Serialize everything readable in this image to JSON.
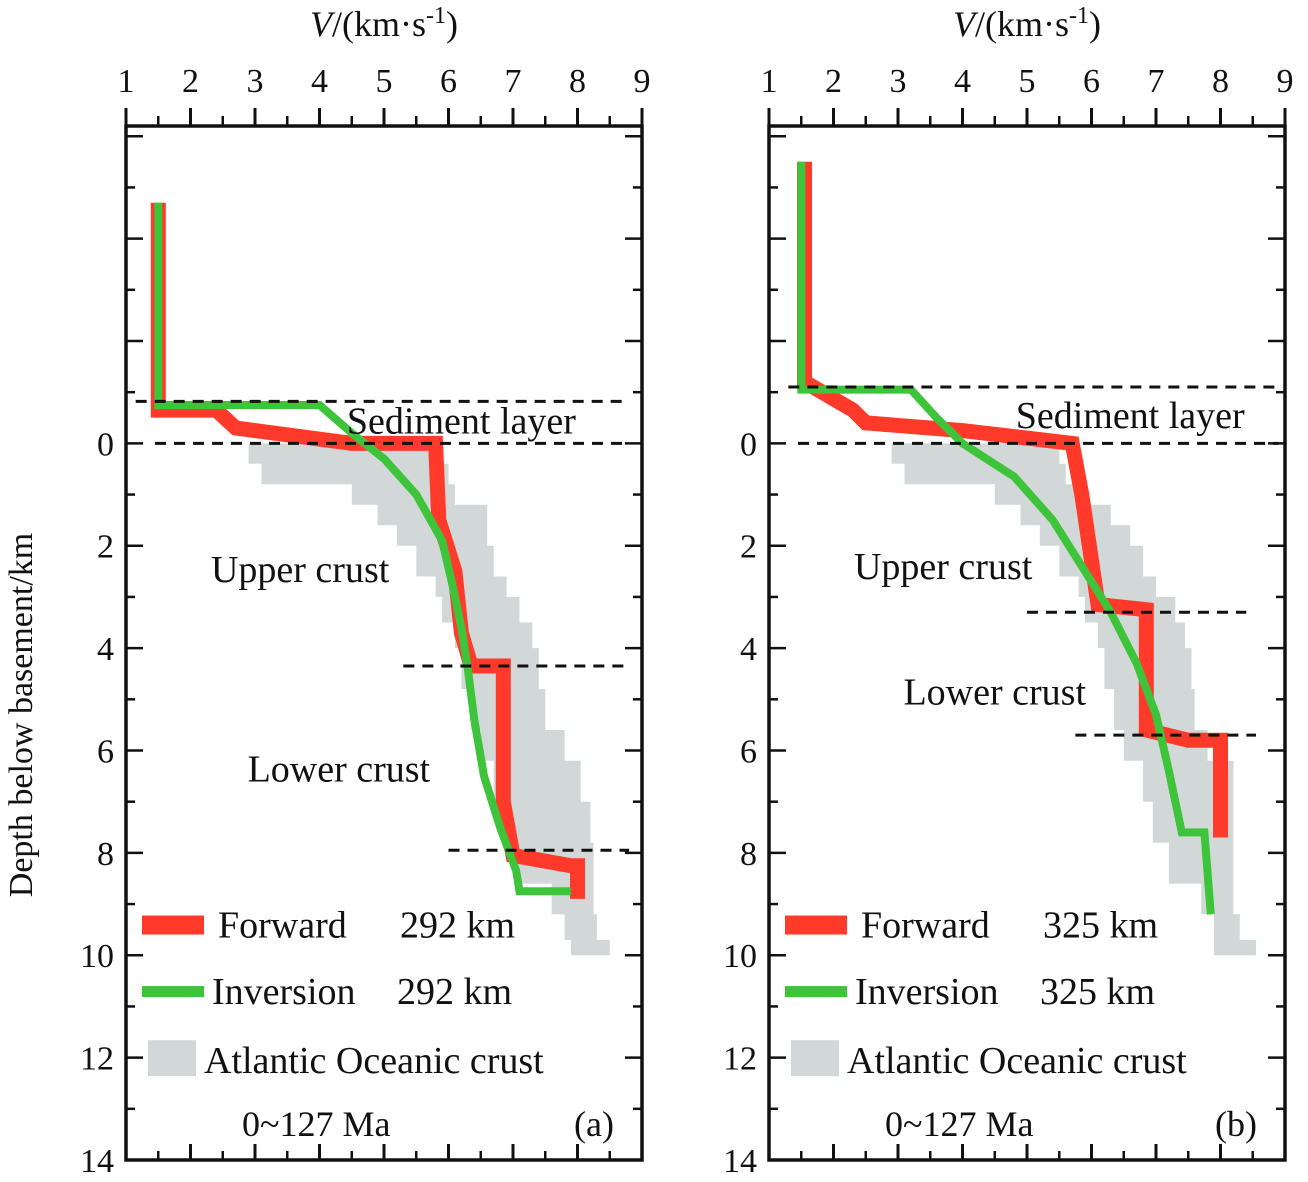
{
  "y_axis_label": "Depth below basement/km",
  "chart_data": [
    {
      "type": "line",
      "panel": "(a)",
      "x_unit_var": "V",
      "x_unit_rest": "/(km·s",
      "x_unit_sup": "-1",
      "x_unit_close": ")",
      "xlabel": "V/(km·s-1)",
      "ylabel": "Depth below basement/km",
      "xlim": [
        1,
        9
      ],
      "ylim": [
        14,
        -6.2
      ],
      "x_ticks": [
        1,
        2,
        3,
        4,
        5,
        6,
        7,
        8,
        9
      ],
      "y_ticks": [
        0,
        2,
        4,
        6,
        8,
        10,
        12,
        14
      ],
      "layer_labels": [
        {
          "text": "Sediment layer",
          "v": 6.2,
          "depth": -0.45
        },
        {
          "text": "Upper crust",
          "v": 3.7,
          "depth": 2.45
        },
        {
          "text": "Lower crust",
          "v": 4.3,
          "depth": 6.35
        }
      ],
      "boundaries": [
        {
          "depth": -0.82,
          "v_from": 1.15,
          "v_to": 8.8
        },
        {
          "depth": 0.0,
          "v_from": 1.45,
          "v_to": 8.8
        },
        {
          "depth": 4.35,
          "v_from": 5.3,
          "v_to": 8.8
        },
        {
          "depth": 7.95,
          "v_from": 6.0,
          "v_to": 8.8
        }
      ],
      "series": [
        {
          "name": "Forward 292 km",
          "legend_name": "Forward",
          "legend_value": "292 km",
          "color": "#ff3a2a",
          "v": [
            1.5,
            1.5,
            2.4,
            2.7,
            4.5,
            5.8,
            5.85,
            6.1,
            6.2,
            6.35,
            6.85,
            6.85,
            7.0,
            7.9,
            8.0,
            8.0
          ],
          "depth": [
            -4.7,
            -0.65,
            -0.65,
            -0.3,
            0.0,
            0.0,
            1.5,
            2.5,
            3.7,
            4.35,
            4.35,
            7.0,
            8.05,
            8.25,
            8.25,
            8.9
          ]
        },
        {
          "name": "Inversion 292 km",
          "legend_name": "Inversion",
          "legend_value": "292 km",
          "color": "#3ec43a",
          "v": [
            1.5,
            1.5,
            4.0,
            4.5,
            5.0,
            5.5,
            5.9,
            6.05,
            6.2,
            6.3,
            6.4,
            6.55,
            6.8,
            7.05,
            7.1,
            7.9
          ],
          "depth": [
            -4.7,
            -0.75,
            -0.75,
            -0.2,
            0.3,
            1.0,
            1.9,
            2.7,
            3.6,
            4.4,
            5.4,
            6.5,
            7.5,
            8.35,
            8.75,
            8.75
          ]
        }
      ],
      "reference_band": {
        "name": "Atlantic Oceanic crust",
        "color": "#d2d8d8",
        "rows": [
          {
            "depth": 0.0,
            "v_min": 2.9,
            "v_max": 5.9
          },
          {
            "depth": 0.4,
            "v_min": 3.1,
            "v_max": 6.0
          },
          {
            "depth": 0.8,
            "v_min": 4.5,
            "v_max": 6.1
          },
          {
            "depth": 1.2,
            "v_min": 4.9,
            "v_max": 6.6
          },
          {
            "depth": 1.6,
            "v_min": 5.2,
            "v_max": 6.6
          },
          {
            "depth": 2.0,
            "v_min": 5.5,
            "v_max": 6.7
          },
          {
            "depth": 2.6,
            "v_min": 5.8,
            "v_max": 6.9
          },
          {
            "depth": 3.0,
            "v_min": 5.9,
            "v_max": 7.1
          },
          {
            "depth": 3.5,
            "v_min": 6.1,
            "v_max": 7.3
          },
          {
            "depth": 4.0,
            "v_min": 6.2,
            "v_max": 7.4
          },
          {
            "depth": 4.8,
            "v_min": 6.35,
            "v_max": 7.5
          },
          {
            "depth": 5.6,
            "v_min": 6.5,
            "v_max": 7.8
          },
          {
            "depth": 6.2,
            "v_min": 6.7,
            "v_max": 8.05
          },
          {
            "depth": 7.0,
            "v_min": 6.9,
            "v_max": 8.2
          },
          {
            "depth": 7.8,
            "v_min": 7.05,
            "v_max": 8.25
          },
          {
            "depth": 8.6,
            "v_min": 7.6,
            "v_max": 8.25
          },
          {
            "depth": 9.2,
            "v_min": 7.8,
            "v_max": 8.3
          },
          {
            "depth": 9.7,
            "v_min": 7.9,
            "v_max": 8.5
          },
          {
            "depth": 10.0,
            "v_min": 7.9,
            "v_max": 8.5
          }
        ]
      },
      "legend": [
        {
          "name": "Forward",
          "value": "292 km"
        },
        {
          "name": "Inversion",
          "value": "292 km"
        },
        {
          "name": "Atlantic Oceanic crust",
          "value": ""
        }
      ],
      "age_text": "0~127 Ma"
    },
    {
      "type": "line",
      "panel": "(b)",
      "x_unit_var": "V",
      "x_unit_rest": "/(km·s",
      "x_unit_sup": "-1",
      "x_unit_close": ")",
      "xlabel": "V/(km·s-1)",
      "ylabel": "Depth below basement/km",
      "xlim": [
        1,
        9
      ],
      "ylim": [
        14,
        -6.2
      ],
      "x_ticks": [
        1,
        2,
        3,
        4,
        5,
        6,
        7,
        8,
        9
      ],
      "y_ticks": [
        0,
        2,
        4,
        6,
        8,
        10,
        12,
        14
      ],
      "layer_labels": [
        {
          "text": "Sediment layer",
          "v": 6.6,
          "depth": -0.55
        },
        {
          "text": "Upper crust",
          "v": 3.7,
          "depth": 2.4
        },
        {
          "text": "Lower crust",
          "v": 4.5,
          "depth": 4.85
        }
      ],
      "boundaries": [
        {
          "depth": -1.1,
          "v_from": 1.3,
          "v_to": 8.9
        },
        {
          "depth": 0.0,
          "v_from": 1.45,
          "v_to": 8.9
        },
        {
          "depth": 3.3,
          "v_from": 5.0,
          "v_to": 8.4
        },
        {
          "depth": 5.7,
          "v_from": 5.75,
          "v_to": 8.55
        }
      ],
      "series": [
        {
          "name": "Forward 325 km",
          "legend_name": "Forward",
          "legend_value": "325 km",
          "color": "#ff3a2a",
          "v": [
            1.55,
            1.55,
            2.3,
            2.3,
            2.5,
            4.0,
            5.7,
            5.85,
            6.1,
            6.85,
            6.85,
            7.5,
            8.0,
            8.0
          ],
          "depth": [
            -5.5,
            -1.2,
            -0.65,
            -0.65,
            -0.4,
            -0.25,
            0.0,
            1.0,
            3.15,
            3.25,
            5.6,
            5.8,
            5.8,
            7.7
          ]
        },
        {
          "name": "Inversion 325 km",
          "legend_name": "Inversion",
          "legend_value": "325 km",
          "color": "#3ec43a",
          "v": [
            1.5,
            1.5,
            3.2,
            3.6,
            4.0,
            4.8,
            5.4,
            5.8,
            6.3,
            6.7,
            7.0,
            7.2,
            7.4,
            7.75,
            7.85
          ],
          "depth": [
            -5.5,
            -1.05,
            -1.05,
            -0.5,
            0.0,
            0.65,
            1.5,
            2.3,
            3.3,
            4.3,
            5.3,
            6.4,
            7.6,
            7.6,
            9.2
          ]
        }
      ],
      "reference_band": {
        "name": "Atlantic Oceanic crust",
        "color": "#d2d8d8",
        "rows": [
          {
            "depth": 0.0,
            "v_min": 2.9,
            "v_max": 5.5
          },
          {
            "depth": 0.4,
            "v_min": 3.1,
            "v_max": 5.6
          },
          {
            "depth": 0.8,
            "v_min": 4.5,
            "v_max": 5.8
          },
          {
            "depth": 1.2,
            "v_min": 4.9,
            "v_max": 6.3
          },
          {
            "depth": 1.6,
            "v_min": 5.2,
            "v_max": 6.6
          },
          {
            "depth": 2.0,
            "v_min": 5.5,
            "v_max": 6.8
          },
          {
            "depth": 2.6,
            "v_min": 5.8,
            "v_max": 7.0
          },
          {
            "depth": 3.0,
            "v_min": 5.9,
            "v_max": 7.3
          },
          {
            "depth": 3.5,
            "v_min": 6.1,
            "v_max": 7.45
          },
          {
            "depth": 4.0,
            "v_min": 6.2,
            "v_max": 7.55
          },
          {
            "depth": 4.8,
            "v_min": 6.35,
            "v_max": 7.6
          },
          {
            "depth": 5.6,
            "v_min": 6.5,
            "v_max": 7.8
          },
          {
            "depth": 6.2,
            "v_min": 6.8,
            "v_max": 8.2
          },
          {
            "depth": 7.0,
            "v_min": 6.95,
            "v_max": 8.2
          },
          {
            "depth": 7.8,
            "v_min": 7.2,
            "v_max": 8.2
          },
          {
            "depth": 8.6,
            "v_min": 7.7,
            "v_max": 8.2
          },
          {
            "depth": 9.2,
            "v_min": 7.9,
            "v_max": 8.3
          },
          {
            "depth": 9.7,
            "v_min": 7.9,
            "v_max": 8.55
          },
          {
            "depth": 10.0,
            "v_min": 7.9,
            "v_max": 8.55
          }
        ]
      },
      "legend": [
        {
          "name": "Forward",
          "value": "325 km"
        },
        {
          "name": "Inversion",
          "value": "325 km"
        },
        {
          "name": "Atlantic Oceanic crust",
          "value": ""
        }
      ],
      "age_text": "0~127 Ma"
    }
  ]
}
